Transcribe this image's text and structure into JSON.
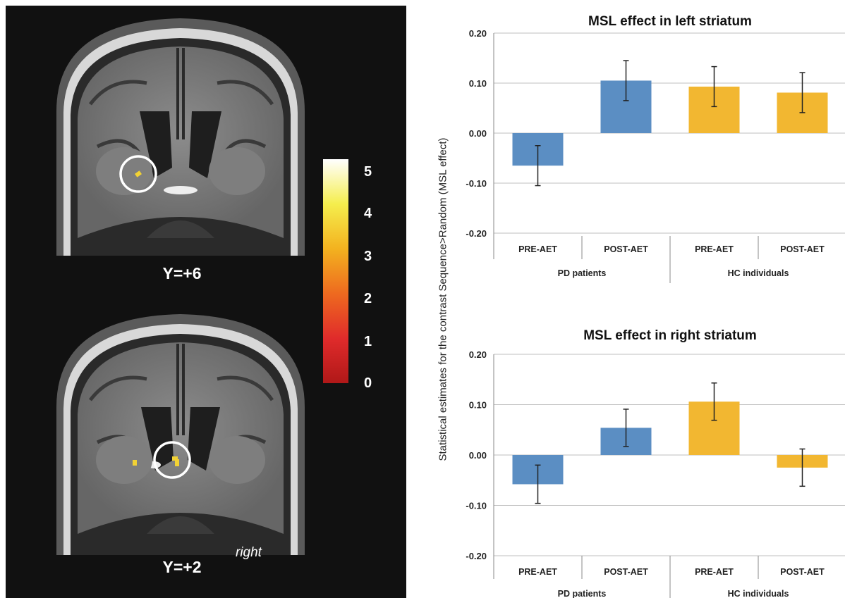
{
  "figure": {
    "brain_slices": [
      {
        "label": "Y=+6"
      },
      {
        "label": "Y=+2",
        "side_label": "right"
      }
    ],
    "colorbar": {
      "ticks": [
        "5",
        "4",
        "3",
        "2",
        "1",
        "0"
      ],
      "colors": [
        "#ffffff",
        "#f5ee4d",
        "#f3b21f",
        "#ee6a1f",
        "#e02b2b",
        "#b01818"
      ]
    },
    "shared_ylabel": "Statistical estimates for the contrast Sequence>Random (MSL effect)"
  },
  "chart_data": [
    {
      "type": "bar",
      "title": "MSL effect in left striatum",
      "categories": [
        "PRE-AET",
        "POST-AET",
        "PRE-AET",
        "POST-AET"
      ],
      "groups": [
        "PD patients",
        "HC individuals"
      ],
      "values": [
        -0.065,
        0.105,
        0.093,
        0.081
      ],
      "errors": [
        0.04,
        0.04,
        0.04,
        0.04
      ],
      "colors": [
        "#5b8ec3",
        "#5b8ec3",
        "#f2b731",
        "#f2b731"
      ],
      "ylim": [
        -0.2,
        0.2
      ],
      "yticks": [
        "0.20",
        "0.10",
        "0.00",
        "-0.10",
        "-0.20"
      ],
      "ytick_values": [
        0.2,
        0.1,
        0.0,
        -0.1,
        -0.2
      ],
      "grid": true
    },
    {
      "type": "bar",
      "title": "MSL effect in right striatum",
      "categories": [
        "PRE-AET",
        "POST-AET",
        "PRE-AET",
        "POST-AET"
      ],
      "groups": [
        "PD patients",
        "HC individuals"
      ],
      "values": [
        -0.058,
        0.054,
        0.106,
        -0.025
      ],
      "errors": [
        0.038,
        0.037,
        0.037,
        0.037
      ],
      "colors": [
        "#5b8ec3",
        "#5b8ec3",
        "#f2b731",
        "#f2b731"
      ],
      "ylim": [
        -0.2,
        0.2
      ],
      "yticks": [
        "0.20",
        "0.10",
        "0.00",
        "-0.10",
        "-0.20"
      ],
      "ytick_values": [
        0.2,
        0.1,
        0.0,
        -0.1,
        -0.2
      ],
      "grid": true
    }
  ]
}
